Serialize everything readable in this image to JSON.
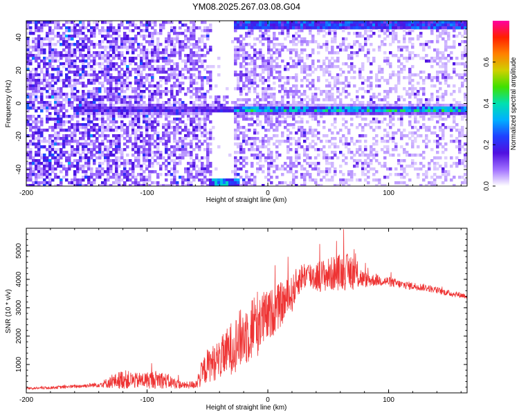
{
  "title": "YM08.2025.267.03.08.G04",
  "chart_data": [
    {
      "type": "heatmap",
      "xlabel": "Height of straight line (km)",
      "ylabel": "Frequency (Hz)",
      "xlim": [
        -200,
        165
      ],
      "ylim": [
        -50,
        50
      ],
      "xticks": [
        -200,
        -100,
        0,
        100
      ],
      "yticks": [
        -40,
        -20,
        0,
        20,
        40
      ],
      "colorbar": {
        "label": "Normalized spectral amplitude",
        "range": [
          0.0,
          0.8
        ],
        "ticks": [
          0.0,
          0.2,
          0.4,
          0.6
        ],
        "colors": [
          "#ffffff",
          "#a070ff",
          "#5010e0",
          "#2040ff",
          "#00b0ff",
          "#00e0b0",
          "#40e000",
          "#d0d000",
          "#ff8000",
          "#ff2000",
          "#ff00a0"
        ]
      },
      "features": [
        {
          "name": "main echo band",
          "frequency_hz": -3,
          "x_range_km": [
            -160,
            165
          ],
          "peak_amplitude": 0.45
        },
        {
          "name": "low-signal gap",
          "x_range_km": [
            -45,
            -30
          ]
        },
        {
          "name": "upper edge band",
          "frequency_hz": 48,
          "x_range_km": [
            -30,
            165
          ],
          "peak_amplitude": 0.3
        },
        {
          "name": "lower edge blob",
          "frequency_hz": -48,
          "x_range_km": [
            -50,
            -25
          ],
          "peak_amplitude": 0.4
        }
      ]
    },
    {
      "type": "line",
      "xlabel": "Height of straight line (km)",
      "ylabel": "SNR (10 * v/v)",
      "xlim": [
        -200,
        165
      ],
      "ylim": [
        0,
        5800
      ],
      "xticks": [
        -200,
        -100,
        0,
        100
      ],
      "yticks": [
        1000,
        2000,
        3000,
        4000,
        5000
      ],
      "color": "#ee3333",
      "series": [
        {
          "name": "SNR",
          "x": [
            -200,
            -180,
            -160,
            -140,
            -130,
            -120,
            -110,
            -100,
            -90,
            -80,
            -70,
            -60,
            -55,
            -50,
            -40,
            -30,
            -20,
            -10,
            0,
            10,
            20,
            25,
            30,
            40,
            50,
            60,
            70,
            80,
            90,
            100,
            110,
            120,
            130,
            140,
            150,
            165
          ],
          "values": [
            150,
            180,
            220,
            280,
            350,
            450,
            400,
            420,
            450,
            350,
            250,
            280,
            600,
            900,
            1100,
            1500,
            1900,
            2300,
            2600,
            3000,
            3400,
            3900,
            4100,
            4050,
            4100,
            4200,
            4200,
            3950,
            3950,
            3900,
            3800,
            3750,
            3700,
            3600,
            3500,
            3400
          ],
          "noise": [
            40,
            50,
            60,
            90,
            220,
            350,
            280,
            300,
            330,
            230,
            120,
            150,
            450,
            600,
            700,
            950,
            1100,
            1250,
            900,
            800,
            650,
            550,
            500,
            550,
            600,
            650,
            650,
            280,
            200,
            180,
            150,
            140,
            130,
            120,
            110,
            100
          ]
        }
      ]
    }
  ]
}
